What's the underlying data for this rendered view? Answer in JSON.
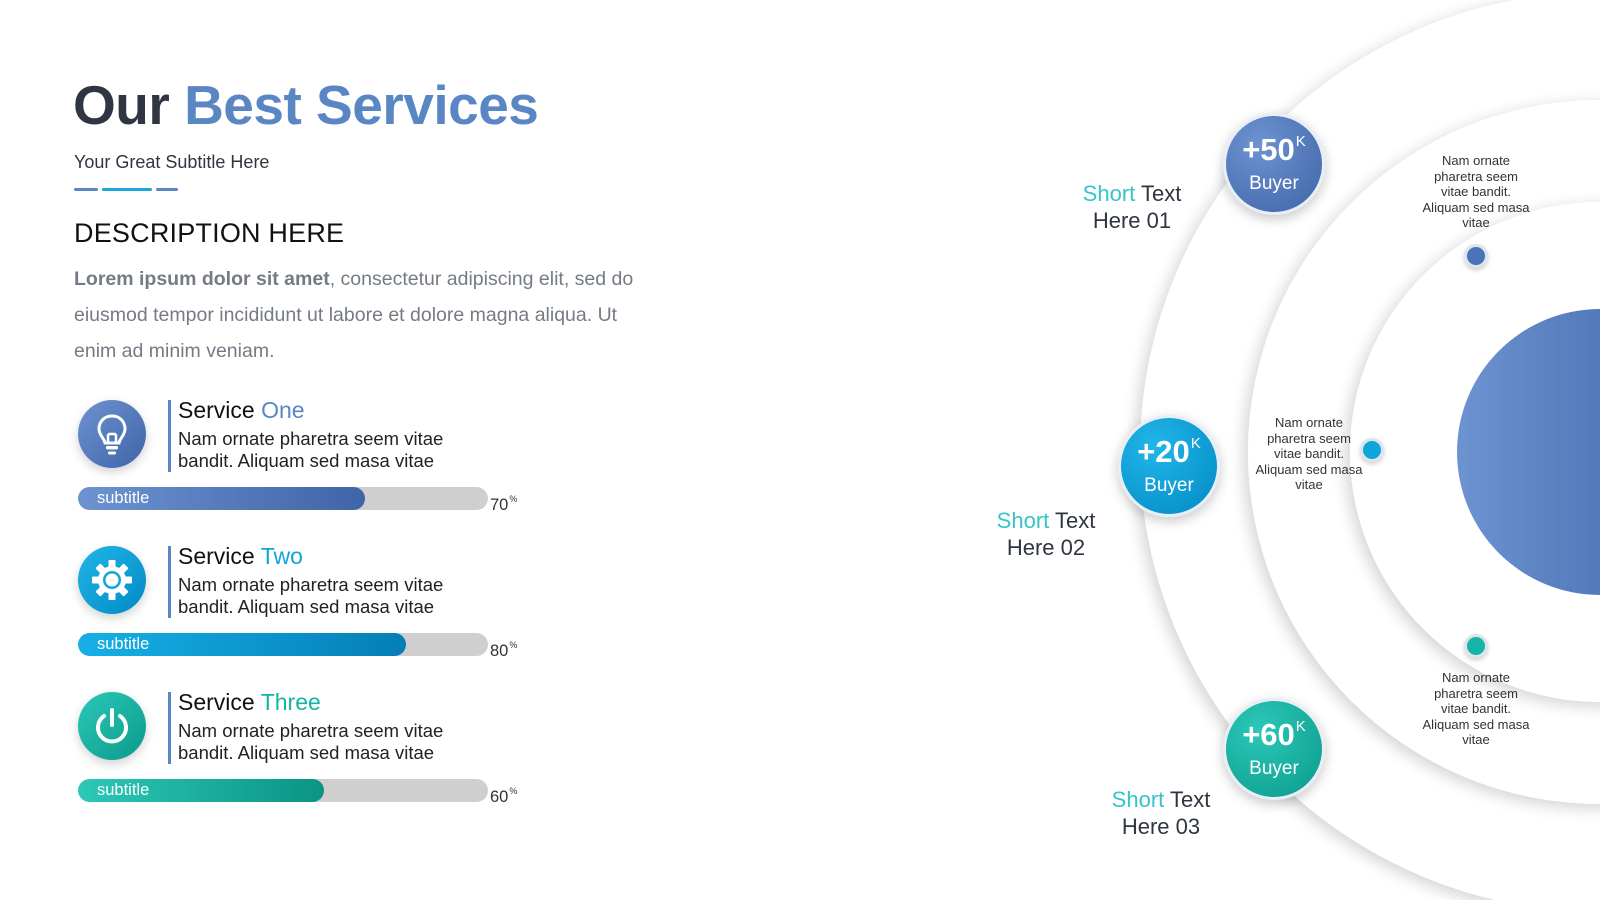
{
  "header": {
    "title_part1": "Our",
    "title_part2": "Best Services",
    "subtitle": "Your Great Subtitle Here"
  },
  "description": {
    "heading": "DESCRIPTION HERE",
    "bold_lead": "Lorem ipsum dolor sit amet",
    "text": ", consectetur adipiscing elit, sed do eiusmod tempor incididunt ut labore et dolore magna aliqua. Ut enim ad minim veniam."
  },
  "services": [
    {
      "name_part1": "Service",
      "name_part2": "One",
      "desc_line1": "Nam ornate pharetra seem vitae",
      "desc_line2": "bandit. Aliquam sed masa vitae",
      "bar_label": "subtitle",
      "percent": 70,
      "percent_text": "70",
      "percent_sign": "%",
      "icon": "lightbulb-icon",
      "color": "#4a72b8"
    },
    {
      "name_part1": "Service",
      "name_part2": "Two",
      "desc_line1": "Nam ornate pharetra seem vitae",
      "desc_line2": "bandit. Aliquam sed masa vitae",
      "bar_label": "subtitle",
      "percent": 80,
      "percent_text": "80",
      "percent_sign": "%",
      "icon": "gear-icon",
      "color": "#0ea5db"
    },
    {
      "name_part1": "Service",
      "name_part2": "Three",
      "desc_line1": "Nam ornate pharetra seem vitae",
      "desc_line2": "bandit. Aliquam sed masa vitae",
      "bar_label": "subtitle",
      "percent": 60,
      "percent_text": "60",
      "percent_sign": "%",
      "icon": "power-icon",
      "color": "#14b4a6"
    }
  ],
  "diagram": {
    "bubbles": [
      {
        "value": "+50",
        "unit": "K",
        "label": "Buyer",
        "color": "#4a72b8"
      },
      {
        "value": "+20",
        "unit": "K",
        "label": "Buyer",
        "color": "#0ea5db"
      },
      {
        "value": "+60",
        "unit": "K",
        "label": "Buyer",
        "color": "#14b4a6"
      }
    ],
    "short_texts": [
      {
        "highlight": "Short",
        "rest": " Text",
        "line2": "Here 01"
      },
      {
        "highlight": "Short",
        "rest": " Text",
        "line2": "Here 02"
      },
      {
        "highlight": "Short",
        "rest": " Text",
        "line2": "Here 03"
      }
    ],
    "notes": [
      "Nam ornate pharetra seem vitae bandit. Aliquam sed masa vitae",
      "Nam ornate pharetra seem vitae bandit. Aliquam sed masa vitae",
      "Nam ornate pharetra seem vitae bandit. Aliquam sed masa vitae"
    ]
  },
  "colors": {
    "blue": "#4a72b8",
    "sky": "#0ea5db",
    "teal": "#14b4a6",
    "title_accent": "#5b86c4",
    "short_highlight": "#38c3c9"
  }
}
